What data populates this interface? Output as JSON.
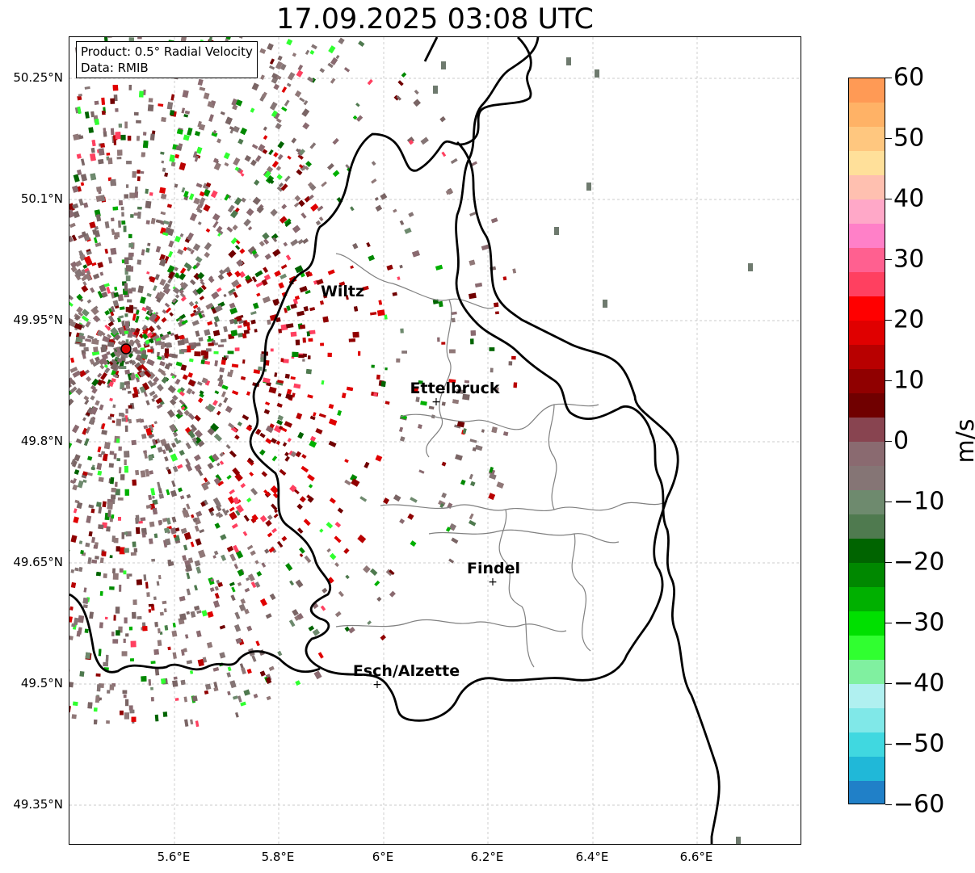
{
  "title": "17.09.2025 03:08 UTC",
  "info_box": {
    "product": "Product: 0.5° Radial Velocity",
    "source": "Data: RMIB"
  },
  "y_axis_labels": [
    "50.25°N",
    "50.1°N",
    "49.95°N",
    "49.8°N",
    "49.65°N",
    "49.5°N",
    "49.35°N"
  ],
  "x_axis_labels": [
    "5.6°E",
    "5.8°E",
    "6°E",
    "6.2°E",
    "6.4°E",
    "6.6°E"
  ],
  "cities": [
    {
      "name": "Wiltz"
    },
    {
      "name": "Ettelbruck"
    },
    {
      "name": "Findel"
    },
    {
      "name": "Esch/Alzette"
    }
  ],
  "radar_site_color": "#e00000",
  "colorbar": {
    "unit": "m/s",
    "ticks": [
      "60",
      "50",
      "40",
      "30",
      "20",
      "10",
      "0",
      "−10",
      "−20",
      "−30",
      "−40",
      "−50",
      "−60"
    ],
    "range": [
      -60,
      60
    ],
    "colors_top_to_bottom": [
      "#ff9a55",
      "#ffb266",
      "#ffc77f",
      "#ffe09a",
      "#ffc0b0",
      "#ffa8c8",
      "#ff80c8",
      "#ff6090",
      "#ff4060",
      "#ff0000",
      "#e00000",
      "#b80000",
      "#900000",
      "#700000",
      "#884450",
      "#8a6a70",
      "#857575",
      "#6e8a6e",
      "#4f7a4f",
      "#006400",
      "#008800",
      "#00b000",
      "#00e000",
      "#30ff30",
      "#80f0a0",
      "#b0f0f0",
      "#80e8e8",
      "#40d8e0",
      "#20b8d8",
      "#2080c8"
    ]
  }
}
